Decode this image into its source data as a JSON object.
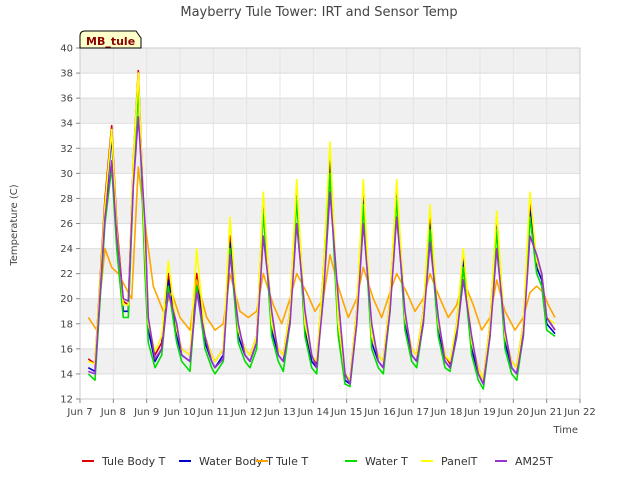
{
  "chart_data": {
    "type": "line",
    "title": "Mayberry Tule Tower: IRT and Sensor Temp",
    "xlabel": "Time",
    "ylabel": "Temperature (C)",
    "tag": "MB_tule",
    "ylim": [
      12,
      40
    ],
    "yticks": [
      12,
      14,
      16,
      18,
      20,
      22,
      24,
      26,
      28,
      30,
      32,
      34,
      36,
      38,
      40
    ],
    "xlim": [
      7,
      22
    ],
    "xticks": [
      {
        "v": 7,
        "label": "Jun 7"
      },
      {
        "v": 8,
        "label": "Jun 8"
      },
      {
        "v": 9,
        "label": "Jun 9"
      },
      {
        "v": 10,
        "label": "Jun 10"
      },
      {
        "v": 11,
        "label": "Jun 11"
      },
      {
        "v": 12,
        "label": "Jun 12"
      },
      {
        "v": 13,
        "label": "Jun 13"
      },
      {
        "v": 14,
        "label": "Jun 14"
      },
      {
        "v": 15,
        "label": "Jun 15"
      },
      {
        "v": 16,
        "label": "Jun 16"
      },
      {
        "v": 17,
        "label": "Jun 17"
      },
      {
        "v": 18,
        "label": "Jun 18"
      },
      {
        "v": 19,
        "label": "Jun 19"
      },
      {
        "v": 20,
        "label": "Jun 20"
      },
      {
        "v": 21,
        "label": "Jun 21"
      },
      {
        "v": 22,
        "label": "Jun 22"
      }
    ],
    "grid": true,
    "legend_position": "bottom",
    "series": [
      {
        "name": "Tule Body T",
        "color": "#dd0000",
        "x": [
          7.25,
          7.45,
          7.75,
          7.95,
          8.1,
          8.3,
          8.45,
          8.6,
          8.75,
          8.95,
          9.05,
          9.25,
          9.45,
          9.65,
          9.9,
          10.05,
          10.3,
          10.5,
          10.75,
          10.95,
          11.05,
          11.3,
          11.5,
          11.75,
          11.95,
          12.1,
          12.3,
          12.5,
          12.75,
          12.95,
          13.1,
          13.3,
          13.5,
          13.75,
          13.95,
          14.1,
          14.3,
          14.5,
          14.75,
          14.95,
          15.1,
          15.3,
          15.5,
          15.75,
          15.95,
          16.1,
          16.3,
          16.5,
          16.75,
          16.95,
          17.1,
          17.3,
          17.5,
          17.75,
          17.95,
          18.1,
          18.3,
          18.5,
          18.75,
          18.95,
          19.1,
          19.3,
          19.5,
          19.75,
          19.95,
          20.1,
          20.3,
          20.5,
          20.7,
          20.85,
          21.0,
          21.25
        ],
        "y": [
          15.2,
          14.8,
          28.0,
          33.8,
          26.0,
          19.8,
          19.5,
          31.0,
          38.2,
          24.0,
          18.0,
          15.5,
          16.5,
          22.0,
          17.5,
          16.0,
          15.5,
          22.0,
          17.0,
          15.5,
          15.0,
          16.0,
          25.0,
          17.5,
          16.0,
          15.5,
          17.0,
          28.0,
          18.0,
          16.0,
          15.5,
          19.0,
          29.0,
          18.0,
          15.5,
          14.8,
          22.0,
          31.5,
          18.0,
          14.0,
          13.5,
          19.0,
          28.5,
          17.0,
          15.5,
          15.0,
          20.0,
          29.0,
          18.5,
          16.0,
          15.5,
          19.0,
          26.5,
          18.0,
          15.5,
          14.8,
          18.0,
          23.5,
          16.5,
          14.5,
          13.5,
          18.0,
          26.5,
          17.0,
          15.0,
          14.5,
          18.0,
          27.5,
          23.0,
          22.0,
          18.5,
          17.5
        ]
      },
      {
        "name": "Water Body T",
        "color": "#0000cc",
        "x": [
          7.25,
          7.45,
          7.75,
          7.95,
          8.1,
          8.3,
          8.45,
          8.6,
          8.75,
          8.95,
          9.05,
          9.25,
          9.45,
          9.65,
          9.9,
          10.05,
          10.3,
          10.5,
          10.75,
          10.95,
          11.05,
          11.3,
          11.5,
          11.75,
          11.95,
          12.1,
          12.3,
          12.5,
          12.75,
          12.95,
          13.1,
          13.3,
          13.5,
          13.75,
          13.95,
          14.1,
          14.3,
          14.5,
          14.75,
          14.95,
          15.1,
          15.3,
          15.5,
          15.75,
          15.95,
          16.1,
          16.3,
          16.5,
          16.75,
          16.95,
          17.1,
          17.3,
          17.5,
          17.75,
          17.95,
          18.1,
          18.3,
          18.5,
          18.75,
          18.95,
          19.1,
          19.3,
          19.5,
          19.75,
          19.95,
          20.1,
          20.3,
          20.5,
          20.7,
          20.85,
          21.0,
          21.25
        ],
        "y": [
          14.5,
          14.2,
          27.0,
          33.0,
          25.0,
          19.0,
          19.0,
          30.0,
          37.5,
          23.0,
          17.5,
          15.0,
          16.0,
          21.5,
          17.0,
          15.5,
          15.0,
          21.5,
          16.5,
          15.0,
          14.5,
          15.5,
          24.5,
          17.0,
          15.5,
          15.0,
          16.5,
          27.5,
          17.5,
          15.5,
          15.0,
          18.5,
          28.5,
          17.5,
          15.0,
          14.5,
          21.5,
          31.0,
          17.5,
          13.5,
          13.2,
          18.5,
          28.0,
          16.5,
          15.0,
          14.5,
          19.5,
          28.5,
          18.0,
          15.5,
          15.0,
          18.5,
          26.0,
          17.5,
          15.0,
          14.5,
          17.5,
          23.0,
          16.0,
          14.0,
          13.2,
          17.5,
          26.0,
          16.5,
          14.5,
          14.0,
          17.5,
          27.0,
          22.5,
          21.5,
          18.0,
          17.2
        ]
      },
      {
        "name": "Tule T",
        "color": "#ffa500",
        "x": [
          7.25,
          7.5,
          7.75,
          7.95,
          8.15,
          8.35,
          8.55,
          8.75,
          8.95,
          9.2,
          9.5,
          9.75,
          10.0,
          10.3,
          10.5,
          10.8,
          11.05,
          11.3,
          11.5,
          11.8,
          12.05,
          12.3,
          12.5,
          12.8,
          13.05,
          13.3,
          13.5,
          13.8,
          14.05,
          14.3,
          14.5,
          14.8,
          15.05,
          15.3,
          15.5,
          15.8,
          16.05,
          16.3,
          16.5,
          16.8,
          17.05,
          17.3,
          17.5,
          17.8,
          18.05,
          18.3,
          18.5,
          18.8,
          19.05,
          19.3,
          19.5,
          19.75,
          20.05,
          20.3,
          20.5,
          20.7,
          20.9,
          21.05,
          21.25
        ],
        "y": [
          18.5,
          17.5,
          24.0,
          22.5,
          22.0,
          21.0,
          20.0,
          30.5,
          26.0,
          21.0,
          19.0,
          20.5,
          18.5,
          17.5,
          21.5,
          18.5,
          17.5,
          18.0,
          22.0,
          19.0,
          18.5,
          19.0,
          22.0,
          19.5,
          18.0,
          20.0,
          22.0,
          20.5,
          19.0,
          20.0,
          23.5,
          20.5,
          18.5,
          20.0,
          22.5,
          20.0,
          18.5,
          20.5,
          22.0,
          20.5,
          19.0,
          20.0,
          22.0,
          20.0,
          18.5,
          19.5,
          21.5,
          19.5,
          17.5,
          18.5,
          21.5,
          19.0,
          17.5,
          18.5,
          20.5,
          21.0,
          20.5,
          19.5,
          18.5
        ]
      },
      {
        "name": "Water T",
        "color": "#00dd00",
        "x": [
          7.25,
          7.45,
          7.75,
          7.95,
          8.1,
          8.3,
          8.45,
          8.6,
          8.75,
          8.95,
          9.05,
          9.25,
          9.45,
          9.65,
          9.9,
          10.05,
          10.3,
          10.5,
          10.75,
          10.95,
          11.05,
          11.3,
          11.5,
          11.75,
          11.95,
          12.1,
          12.3,
          12.5,
          12.75,
          12.95,
          13.1,
          13.3,
          13.5,
          13.75,
          13.95,
          14.1,
          14.3,
          14.5,
          14.75,
          14.95,
          15.1,
          15.3,
          15.5,
          15.75,
          15.95,
          16.1,
          16.3,
          16.5,
          16.75,
          16.95,
          17.1,
          17.3,
          17.5,
          17.75,
          17.95,
          18.1,
          18.3,
          18.5,
          18.75,
          18.95,
          19.1,
          19.3,
          19.5,
          19.75,
          19.95,
          20.1,
          20.3,
          20.5,
          20.7,
          20.85,
          21.0,
          21.25
        ],
        "y": [
          14.0,
          13.5,
          26.0,
          30.5,
          24.0,
          18.5,
          18.5,
          29.0,
          37.0,
          22.0,
          16.5,
          14.5,
          15.5,
          21.0,
          16.5,
          15.0,
          14.2,
          21.0,
          16.0,
          14.5,
          14.0,
          15.0,
          24.0,
          16.5,
          15.0,
          14.5,
          16.0,
          27.0,
          17.0,
          15.0,
          14.2,
          18.0,
          28.0,
          17.0,
          14.5,
          14.0,
          21.0,
          30.0,
          17.0,
          13.2,
          13.0,
          18.0,
          27.5,
          16.0,
          14.5,
          14.0,
          19.0,
          28.0,
          17.5,
          15.0,
          14.5,
          18.0,
          25.5,
          17.0,
          14.5,
          14.2,
          17.0,
          22.5,
          15.5,
          13.5,
          12.8,
          17.0,
          25.5,
          16.0,
          14.0,
          13.5,
          17.0,
          26.5,
          22.0,
          21.0,
          17.5,
          17.0
        ]
      },
      {
        "name": "PanelT",
        "color": "#ffff00",
        "x": [
          7.25,
          7.45,
          7.75,
          7.95,
          8.1,
          8.3,
          8.45,
          8.6,
          8.75,
          8.95,
          9.05,
          9.25,
          9.45,
          9.65,
          9.9,
          10.05,
          10.3,
          10.5,
          10.75,
          10.95,
          11.05,
          11.3,
          11.5,
          11.75,
          11.95,
          12.1,
          12.3,
          12.5,
          12.75,
          12.95,
          13.1,
          13.3,
          13.5,
          13.75,
          13.95,
          14.1,
          14.3,
          14.5,
          14.75,
          14.95,
          15.1,
          15.3,
          15.5,
          15.75,
          15.95,
          16.1,
          16.3,
          16.5,
          16.75,
          16.95,
          17.1,
          17.3,
          17.5,
          17.75,
          17.95,
          18.1,
          18.3,
          18.5,
          18.75,
          18.95,
          19.1,
          19.3,
          19.5,
          19.75,
          19.95,
          20.1,
          20.3,
          20.5,
          20.7,
          20.85,
          21.0,
          21.25
        ],
        "y": [
          15.0,
          14.8,
          27.5,
          33.5,
          25.5,
          19.5,
          19.5,
          31.0,
          38.0,
          24.0,
          18.0,
          15.8,
          17.0,
          23.0,
          17.5,
          16.0,
          15.5,
          24.0,
          17.0,
          15.5,
          15.0,
          16.0,
          26.5,
          17.5,
          16.0,
          15.5,
          17.0,
          28.5,
          18.0,
          16.0,
          15.5,
          19.0,
          29.5,
          18.0,
          15.5,
          15.0,
          22.0,
          32.5,
          18.0,
          14.0,
          13.5,
          19.0,
          29.5,
          17.0,
          15.5,
          15.0,
          20.0,
          29.5,
          18.5,
          16.0,
          15.5,
          19.0,
          27.5,
          18.0,
          15.5,
          15.0,
          18.0,
          24.0,
          16.5,
          14.5,
          13.5,
          18.0,
          27.0,
          17.0,
          15.0,
          14.5,
          18.0,
          28.5,
          23.0,
          22.0,
          18.5,
          18.0
        ]
      },
      {
        "name": "AM25T",
        "color": "#9933cc",
        "x": [
          7.25,
          7.45,
          7.75,
          7.95,
          8.1,
          8.3,
          8.45,
          8.6,
          8.75,
          8.95,
          9.05,
          9.25,
          9.45,
          9.65,
          9.9,
          10.05,
          10.3,
          10.5,
          10.75,
          10.95,
          11.05,
          11.3,
          11.5,
          11.75,
          11.95,
          12.1,
          12.3,
          12.5,
          12.75,
          12.95,
          13.1,
          13.3,
          13.5,
          13.75,
          13.95,
          14.1,
          14.3,
          14.5,
          14.75,
          14.95,
          15.1,
          15.3,
          15.5,
          15.75,
          15.95,
          16.1,
          16.3,
          16.5,
          16.75,
          16.95,
          17.1,
          17.3,
          17.5,
          17.75,
          17.95,
          18.1,
          18.3,
          18.5,
          18.75,
          18.95,
          19.1,
          19.3,
          19.5,
          19.75,
          19.95,
          20.1,
          20.3,
          20.5,
          20.7,
          20.85,
          21.0,
          21.25
        ],
        "y": [
          14.2,
          14.0,
          26.5,
          31.0,
          25.0,
          20.0,
          19.8,
          29.0,
          34.5,
          26.0,
          18.5,
          15.2,
          16.0,
          20.5,
          18.0,
          15.5,
          15.0,
          20.5,
          17.0,
          15.0,
          14.5,
          15.2,
          23.5,
          18.0,
          15.5,
          15.0,
          16.5,
          25.0,
          19.0,
          15.5,
          15.0,
          18.0,
          26.0,
          19.0,
          15.5,
          14.5,
          20.0,
          28.5,
          20.0,
          14.0,
          13.2,
          18.0,
          26.0,
          18.0,
          15.0,
          14.5,
          19.0,
          26.5,
          19.0,
          15.5,
          15.0,
          18.0,
          24.5,
          18.5,
          15.0,
          14.5,
          17.0,
          21.5,
          17.0,
          14.0,
          13.2,
          17.0,
          24.0,
          17.5,
          14.5,
          14.0,
          17.0,
          25.0,
          23.5,
          22.0,
          18.5,
          17.5
        ]
      }
    ]
  }
}
